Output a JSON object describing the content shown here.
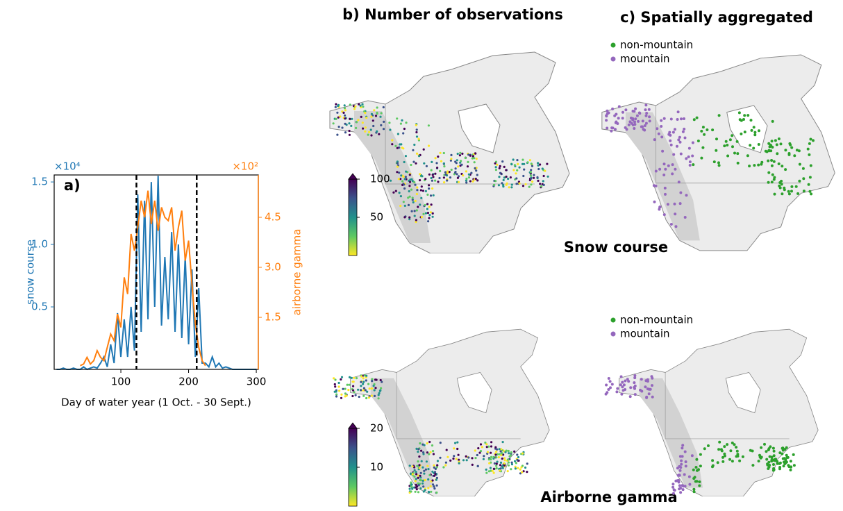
{
  "chart_data": [
    {
      "type": "line",
      "panel_label": "a)",
      "xlabel": "Day of water year (1 Oct. - 30 Sept.)",
      "ylabel": "snow course",
      "y2label": "airborne gamma",
      "y_multiplier": "×10⁴",
      "y2_multiplier": "×10²",
      "x": [
        5,
        10,
        15,
        20,
        25,
        30,
        35,
        40,
        45,
        50,
        55,
        60,
        65,
        70,
        75,
        80,
        85,
        90,
        95,
        100,
        105,
        110,
        115,
        120,
        125,
        130,
        135,
        140,
        145,
        150,
        155,
        160,
        165,
        170,
        175,
        180,
        185,
        190,
        195,
        200,
        205,
        210,
        215,
        220,
        225,
        230,
        235,
        240,
        245,
        250,
        255,
        260,
        265,
        270,
        275,
        280,
        285,
        290,
        295,
        300
      ],
      "series": [
        {
          "name": "snow course",
          "color": "#1f77b4",
          "axis": "y",
          "values": [
            0,
            0,
            0.01,
            0,
            0,
            0.01,
            0,
            0,
            0.02,
            0,
            0.01,
            0.02,
            0.01,
            0.05,
            0.1,
            0.02,
            0.2,
            0.05,
            0.45,
            0.1,
            0.4,
            0.1,
            0.5,
            0.15,
            1.4,
            0.3,
            1.35,
            0.4,
            1.5,
            0.5,
            1.55,
            0.35,
            0.9,
            0.4,
            1.1,
            0.3,
            1.0,
            0.25,
            0.9,
            0.2,
            0.8,
            0.1,
            0.65,
            0.05,
            0.05,
            0.02,
            0.1,
            0.02,
            0.05,
            0.01,
            0.02,
            0.01,
            0,
            0,
            0,
            0,
            0,
            0,
            0,
            0
          ]
        },
        {
          "name": "airborne gamma",
          "color": "#ff7f0e",
          "axis": "y2",
          "values": [
            null,
            null,
            null,
            null,
            null,
            null,
            null,
            0.05,
            0.1,
            0.3,
            0.1,
            0.2,
            0.5,
            0.3,
            0.2,
            0.6,
            1.0,
            0.8,
            1.6,
            1.2,
            2.7,
            2.2,
            4.0,
            3.5,
            4.2,
            5.0,
            4.5,
            5.3,
            4.3,
            5.0,
            4.1,
            4.8,
            4.5,
            4.4,
            4.8,
            3.5,
            4.2,
            4.7,
            3.2,
            3.8,
            2.5,
            1.3,
            0.6,
            0.2,
            0.05,
            null,
            null,
            null,
            null,
            null,
            null,
            null,
            null,
            null,
            null,
            null,
            null,
            null,
            null,
            null
          ]
        }
      ],
      "vlines": [
        123,
        212
      ],
      "xlim": [
        1.5,
        303
      ],
      "xticks": [
        100,
        200,
        300
      ],
      "ylim": [
        0,
        1.556
      ],
      "yticks": [
        0.5,
        {
          "value": 1.0,
          "label": "1.0"
        },
        1.5
      ],
      "y2lim": [
        -0.06,
        5.77
      ],
      "y2ticks": [
        1.5,
        {
          "value": 3.0,
          "label": "3.0"
        },
        4.5
      ]
    },
    {
      "type": "colorbar",
      "colors": [
        "#fde725",
        "#5ec962",
        "#21918c",
        "#3b528b",
        "#440154"
      ],
      "ylim": [
        0,
        100
      ],
      "yticks": [
        50,
        100
      ]
    },
    {
      "type": "colorbar",
      "colors": [
        "#fde725",
        "#5ec962",
        "#21918c",
        "#3b528b",
        "#440154"
      ],
      "ylim": [
        0,
        20
      ],
      "yticks": [
        10,
        20
      ]
    }
  ],
  "figure": {
    "panel_b_title": "b) Number of observations",
    "panel_c_title": "c) Spatially aggregated",
    "row_labels": [
      "Snow course",
      "Airborne gamma"
    ],
    "legend": [
      {
        "name": "non-mountain",
        "color": "#2ca02c"
      },
      {
        "name": "mountain",
        "color": "#9467bd"
      }
    ]
  }
}
